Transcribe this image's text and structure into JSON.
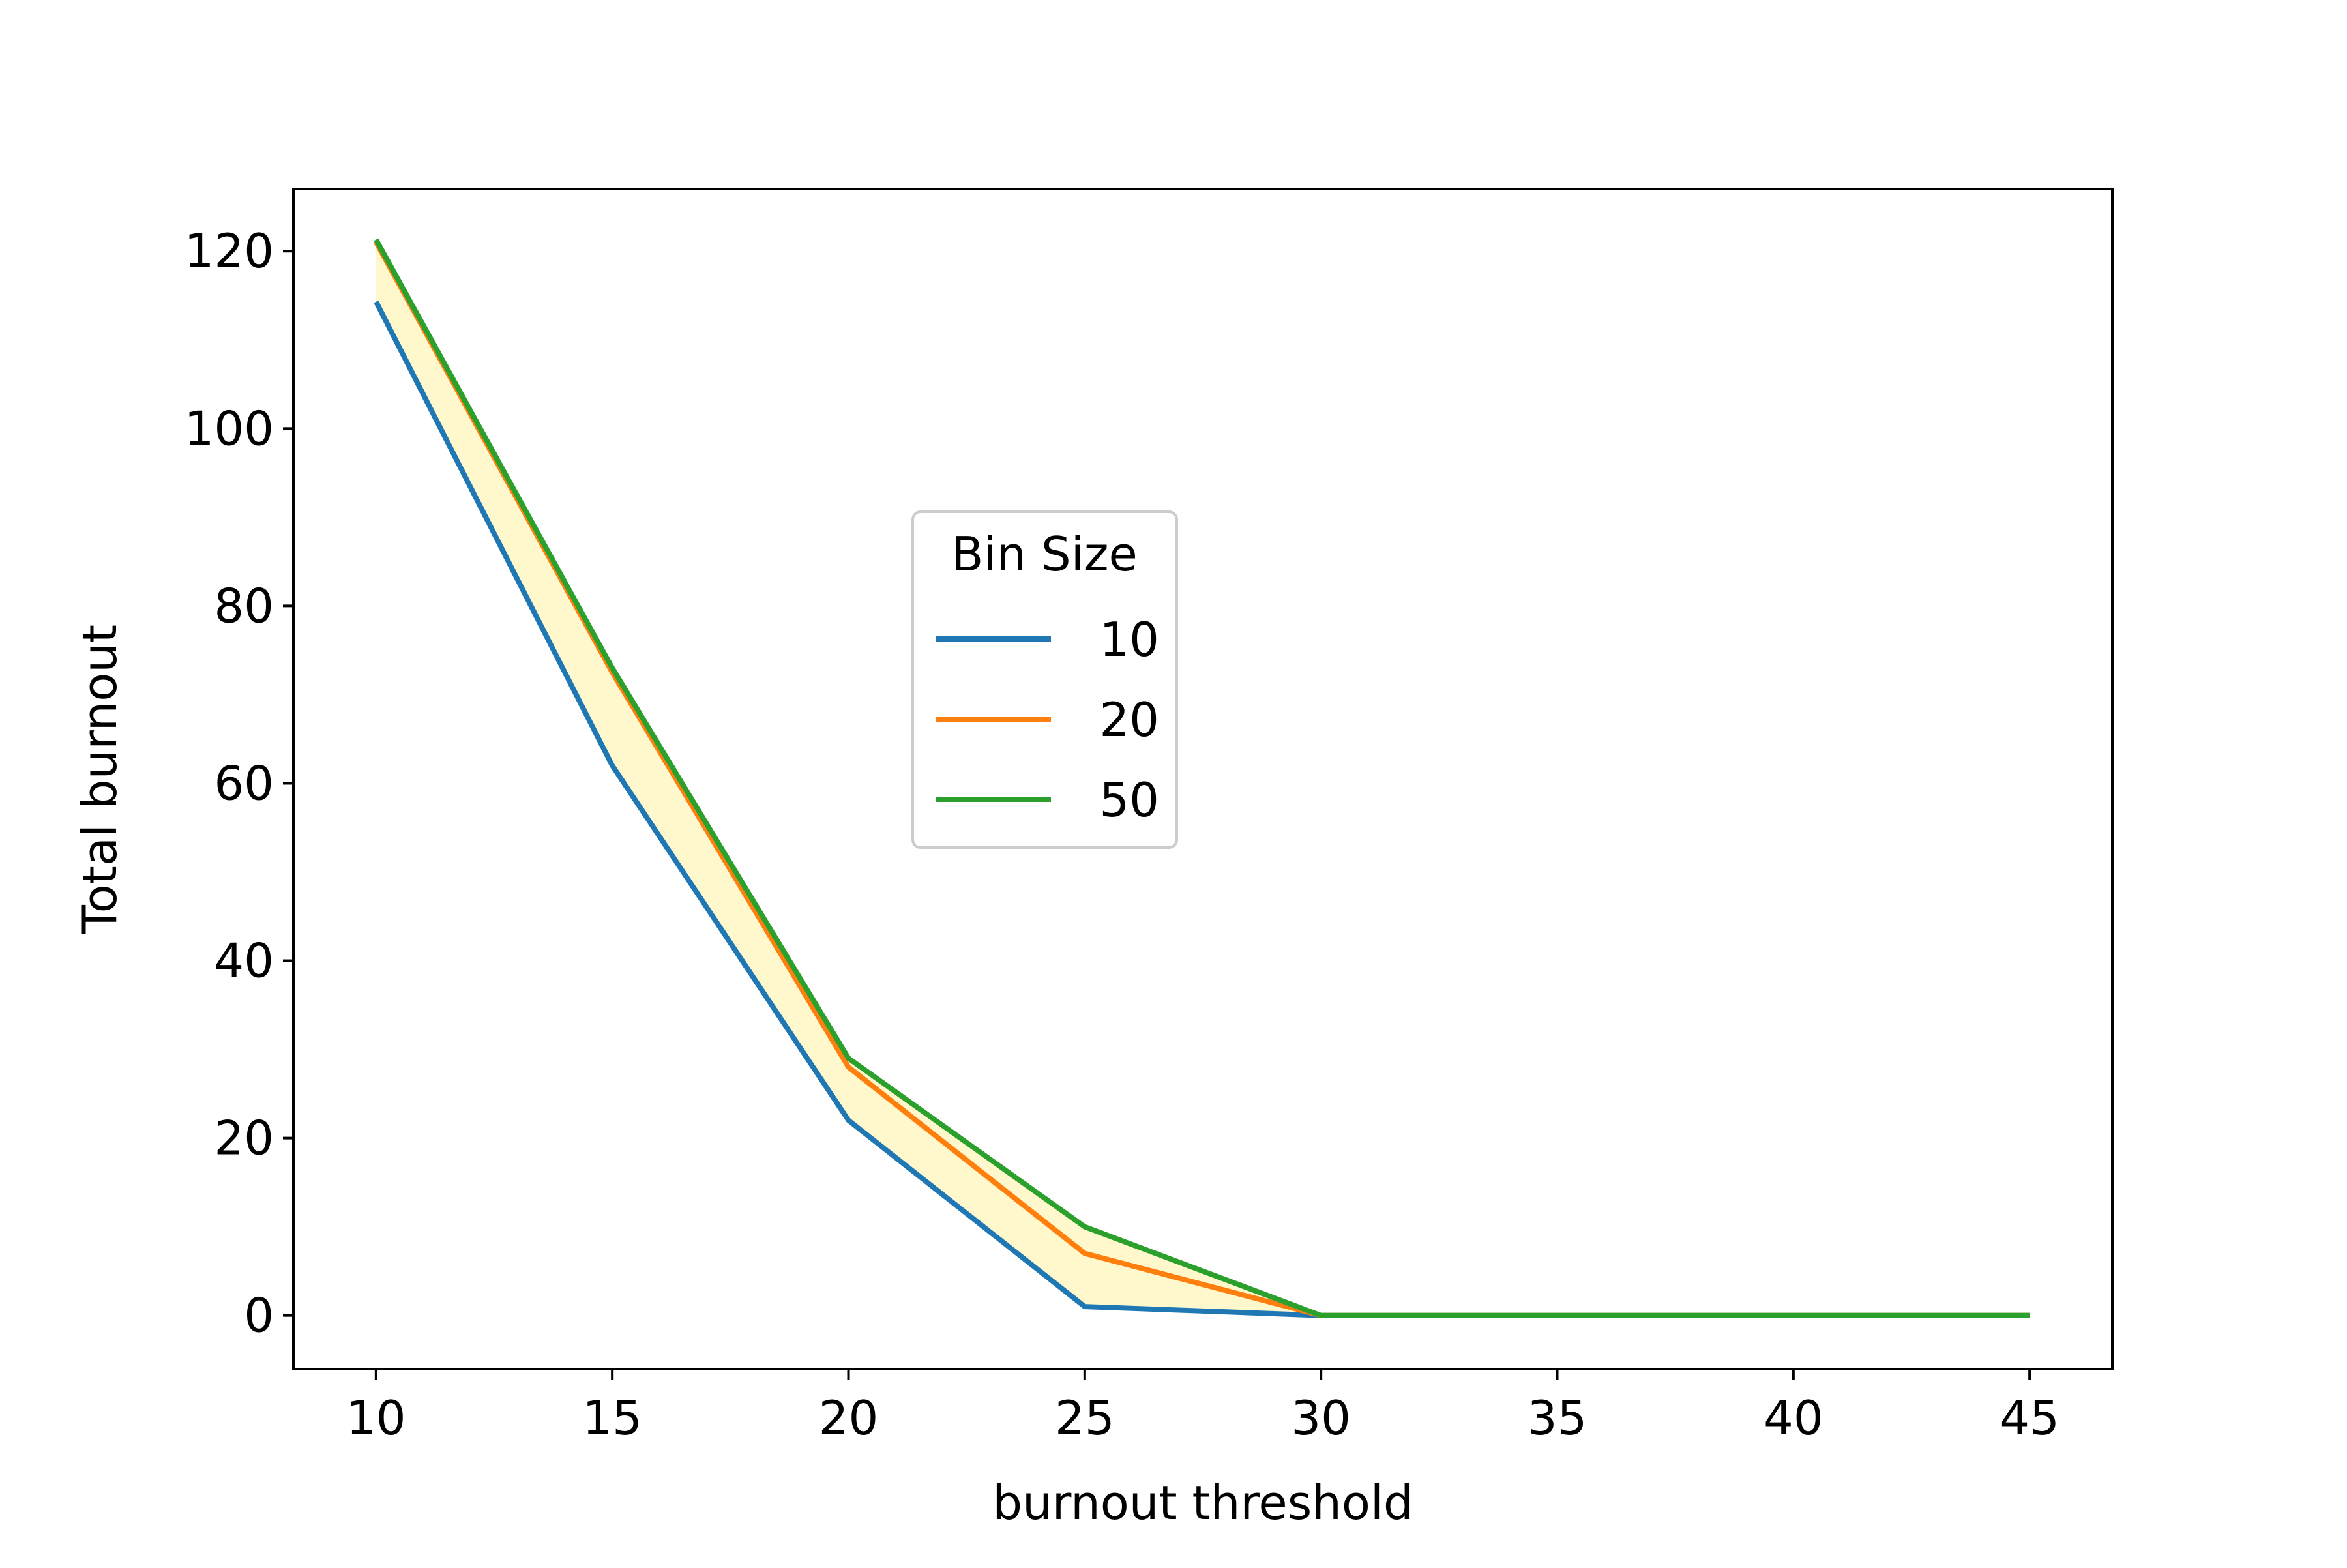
{
  "chart_data": {
    "type": "line",
    "title": "",
    "xlabel": "burnout threshold",
    "ylabel": "Total burnout",
    "x": [
      10,
      15,
      20,
      25,
      30,
      35,
      40,
      45
    ],
    "xticks": [
      "10",
      "15",
      "20",
      "25",
      "30",
      "35",
      "40",
      "45"
    ],
    "yticks": [
      "0",
      "20",
      "40",
      "60",
      "80",
      "100",
      "120"
    ],
    "xlim": [
      8.25,
      46.75
    ],
    "ylim": [
      -6.05,
      127.0
    ],
    "series": [
      {
        "name": "10",
        "color": "#1f77b4",
        "values": [
          114.3,
          62,
          22,
          1,
          0,
          0,
          0,
          0
        ]
      },
      {
        "name": "20",
        "color": "#ff7f0e",
        "values": [
          121.0,
          72.5,
          28,
          7,
          0,
          0,
          0,
          0
        ]
      },
      {
        "name": "50",
        "color": "#2ca02c",
        "values": [
          121.3,
          73,
          29,
          10,
          0,
          0,
          0,
          0
        ]
      }
    ],
    "fill_between": {
      "lower_series": "10",
      "upper_series": "50",
      "color": "#fff8cc"
    },
    "legend": {
      "title": "Bin Size",
      "placement": "center"
    },
    "grid": false
  }
}
